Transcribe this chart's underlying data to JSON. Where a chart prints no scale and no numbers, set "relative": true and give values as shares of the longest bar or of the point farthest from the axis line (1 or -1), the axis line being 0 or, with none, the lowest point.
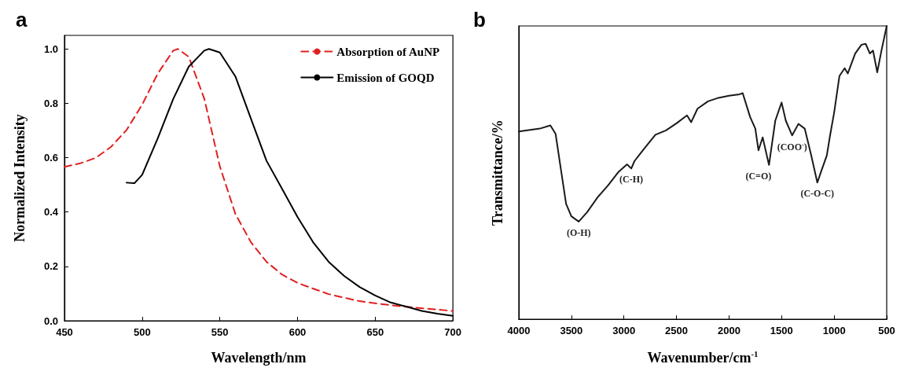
{
  "chart_data": [
    {
      "type": "line",
      "xlabel": "Wavelength/nm",
      "ylabel": "Normalized Intensity",
      "annotations": [
        "a"
      ],
      "legend": "top right",
      "grid": false,
      "marker": "none",
      "xlim": [
        450,
        700
      ],
      "xticks": [
        450,
        500,
        550,
        600,
        650,
        700
      ],
      "ylim": [
        0,
        1.05
      ],
      "yticks": [
        {
          "value": 0,
          "label": "0.0"
        },
        {
          "value": 0.2,
          "label": "0.2"
        },
        {
          "value": 0.4,
          "label": "0.4"
        },
        {
          "value": 0.6,
          "label": "0.6"
        },
        {
          "value": 0.8,
          "label": "0.8"
        },
        {
          "value": 1,
          "label": "1.0"
        }
      ],
      "series": [
        {
          "name": "Absorption of AuNP",
          "color": "#e02020",
          "line_style": "dashed",
          "x": [
            450,
            460,
            470,
            480,
            490,
            500,
            510,
            520,
            523,
            530,
            540,
            550,
            560,
            570,
            580,
            590,
            600,
            620,
            640,
            660,
            680,
            700
          ],
          "values": [
            0.566,
            0.579,
            0.599,
            0.64,
            0.702,
            0.795,
            0.909,
            0.994,
            1.0,
            0.971,
            0.817,
            0.568,
            0.393,
            0.289,
            0.217,
            0.17,
            0.139,
            0.098,
            0.072,
            0.057,
            0.046,
            0.036
          ]
        },
        {
          "name": "Emission of GOQD",
          "color": "#000000",
          "line_style": "solid",
          "x": [
            490,
            495,
            500,
            510,
            520,
            530,
            540,
            543,
            550,
            560,
            570,
            580,
            590,
            600,
            610,
            620,
            630,
            640,
            650,
            660,
            670,
            680,
            690,
            700
          ],
          "values": [
            0.508,
            0.506,
            0.537,
            0.671,
            0.816,
            0.935,
            0.994,
            1.0,
            0.987,
            0.899,
            0.744,
            0.589,
            0.486,
            0.382,
            0.289,
            0.217,
            0.165,
            0.124,
            0.093,
            0.067,
            0.052,
            0.036,
            0.026,
            0.018
          ]
        }
      ]
    },
    {
      "type": "line",
      "xlabel": "Wavenumber/cm$^{-1}$",
      "ylabel": "Transmittance/%",
      "relative": true,
      "tick_labels": "x",
      "grid": false,
      "marker": "none",
      "legend": false,
      "xlim": [
        4000,
        500
      ],
      "xticks": [
        4000,
        3500,
        3000,
        2500,
        2000,
        1500,
        1000,
        500
      ],
      "annotations": [
        "b",
        {
          "text": "(O-H)",
          "x": 3430,
          "y": 0.333
        },
        {
          "text": "(C-H)",
          "x": 2930,
          "y": 0.514
        },
        {
          "text": "(C=O)",
          "x": 1720,
          "y": 0.576
        },
        {
          "text": "(COO$^{-}$)",
          "x": 1400,
          "y": 0.627
        },
        {
          "text": "(C-O-C)",
          "x": 1160,
          "y": 0.466
        }
      ],
      "series": [
        {
          "color": "#1a1a1a",
          "x": [
            4000,
            3800,
            3700,
            3650,
            3600,
            3550,
            3500,
            3430,
            3350,
            3250,
            3150,
            3050,
            2970,
            2930,
            2900,
            2850,
            2800,
            2700,
            2600,
            2500,
            2400,
            2360,
            2300,
            2200,
            2100,
            2000,
            1900,
            1870,
            1800,
            1750,
            1720,
            1680,
            1620,
            1560,
            1500,
            1460,
            1400,
            1340,
            1280,
            1220,
            1160,
            1120,
            1070,
            1040,
            1000,
            950,
            900,
            870,
            800,
            740,
            700,
            660,
            630,
            590,
            550,
            500
          ],
          "values": [
            0.64,
            0.65,
            0.661,
            0.632,
            0.512,
            0.393,
            0.351,
            0.333,
            0.365,
            0.416,
            0.457,
            0.503,
            0.528,
            0.514,
            0.539,
            0.562,
            0.585,
            0.629,
            0.644,
            0.668,
            0.695,
            0.672,
            0.718,
            0.743,
            0.755,
            0.762,
            0.767,
            0.771,
            0.69,
            0.65,
            0.576,
            0.62,
            0.526,
            0.677,
            0.739,
            0.677,
            0.627,
            0.666,
            0.65,
            0.562,
            0.466,
            0.508,
            0.558,
            0.624,
            0.705,
            0.829,
            0.856,
            0.838,
            0.906,
            0.936,
            0.939,
            0.906,
            0.916,
            0.842,
            0.916,
            1.0
          ]
        }
      ]
    }
  ]
}
